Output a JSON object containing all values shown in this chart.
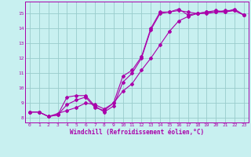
{
  "xlabel": "Windchill (Refroidissement éolien,°C)",
  "background_color": "#c8f0f0",
  "line_color": "#aa00aa",
  "grid_color": "#99cccc",
  "xlim": [
    -0.5,
    23.5
  ],
  "ylim": [
    7.7,
    15.8
  ],
  "xticks": [
    0,
    1,
    2,
    3,
    4,
    5,
    6,
    7,
    8,
    9,
    10,
    11,
    12,
    13,
    14,
    15,
    16,
    17,
    18,
    19,
    20,
    21,
    22,
    23
  ],
  "yticks": [
    8,
    9,
    10,
    11,
    12,
    13,
    14,
    15
  ],
  "line1_x": [
    0,
    1,
    2,
    3,
    4,
    5,
    6,
    7,
    8,
    9,
    10,
    11,
    12,
    13,
    14,
    15,
    16,
    17,
    18,
    19,
    20,
    21,
    22,
    23
  ],
  "line1_y": [
    8.4,
    8.4,
    8.1,
    8.2,
    9.4,
    9.5,
    9.5,
    8.8,
    8.4,
    8.8,
    10.4,
    11.0,
    12.0,
    13.9,
    15.0,
    15.1,
    15.2,
    15.1,
    15.0,
    15.1,
    15.2,
    15.1,
    15.3,
    14.9
  ],
  "line2_x": [
    0,
    1,
    2,
    3,
    4,
    5,
    6,
    7,
    8,
    9,
    10,
    11,
    12,
    13,
    14,
    15,
    16,
    17,
    18,
    19,
    20,
    21,
    22,
    23
  ],
  "line2_y": [
    8.4,
    8.4,
    8.1,
    8.2,
    8.9,
    9.2,
    9.4,
    8.7,
    8.5,
    9.0,
    10.8,
    11.2,
    12.1,
    14.0,
    15.1,
    15.1,
    15.3,
    14.9,
    15.0,
    15.0,
    15.1,
    15.1,
    15.2,
    14.9
  ],
  "line3_x": [
    0,
    1,
    2,
    3,
    4,
    5,
    6,
    7,
    8,
    9,
    10,
    11,
    12,
    13,
    14,
    15,
    16,
    17,
    18,
    19,
    20,
    21,
    22,
    23
  ],
  "line3_y": [
    8.4,
    8.4,
    8.1,
    8.3,
    8.5,
    8.7,
    9.0,
    8.9,
    8.6,
    9.0,
    9.8,
    10.3,
    11.2,
    12.0,
    12.9,
    13.8,
    14.5,
    14.8,
    15.0,
    15.1,
    15.1,
    15.2,
    15.2,
    14.9
  ]
}
